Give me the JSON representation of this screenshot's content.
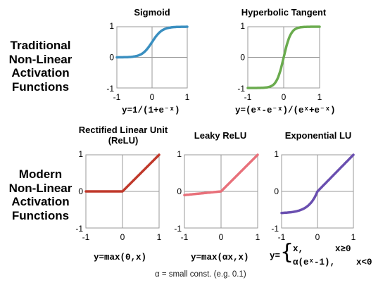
{
  "sections": {
    "traditional": [
      "Traditional",
      "Non-Linear",
      "Activation",
      "Functions"
    ],
    "modern": [
      "Modern",
      "Non-Linear",
      "Activation",
      "Functions"
    ]
  },
  "plots": {
    "sigmoid": {
      "title_lines": [
        "Sigmoid"
      ],
      "formula": "y=1/(1+e⁻ˣ)",
      "color": "#3a8fc0",
      "x_ticks": [
        "-1",
        "0",
        "1"
      ],
      "y_ticks": [
        "1",
        "0",
        "-1"
      ]
    },
    "tanh": {
      "title_lines": [
        "Hyperbolic Tangent"
      ],
      "formula": "y=(eˣ-e⁻ˣ)/(eˣ+e⁻ˣ)",
      "color": "#6aab4e",
      "x_ticks": [
        "-1",
        "0",
        "1"
      ],
      "y_ticks": [
        "1",
        "0",
        "-1"
      ]
    },
    "relu": {
      "title_lines": [
        "Rectified Linear Unit",
        "(ReLU)"
      ],
      "formula": "y=max(0,x)",
      "color": "#c0392b",
      "x_ticks": [
        "-1",
        "0",
        "1"
      ],
      "y_ticks": [
        "1",
        "0",
        "-1"
      ]
    },
    "leaky_relu": {
      "title_lines": [
        "Leaky ReLU"
      ],
      "formula": "y=max(αx,x)",
      "color": "#e8707a",
      "x_ticks": [
        "-1",
        "0",
        "1"
      ],
      "y_ticks": [
        "1",
        "0",
        "-1"
      ]
    },
    "elu": {
      "title_lines": [
        "Exponential LU"
      ],
      "formula_prefix": "y=",
      "formula_case1_expr": "x,",
      "formula_case1_cond": "x≥0",
      "formula_case2_expr": "α(eˣ-1),",
      "formula_case2_cond": "x<0",
      "color": "#6a4fb0",
      "x_ticks": [
        "-1",
        "0",
        "1"
      ],
      "y_ticks": [
        "1",
        "0",
        "-1"
      ]
    }
  },
  "footnote": "α = small const. (e.g. 0.1)"
}
